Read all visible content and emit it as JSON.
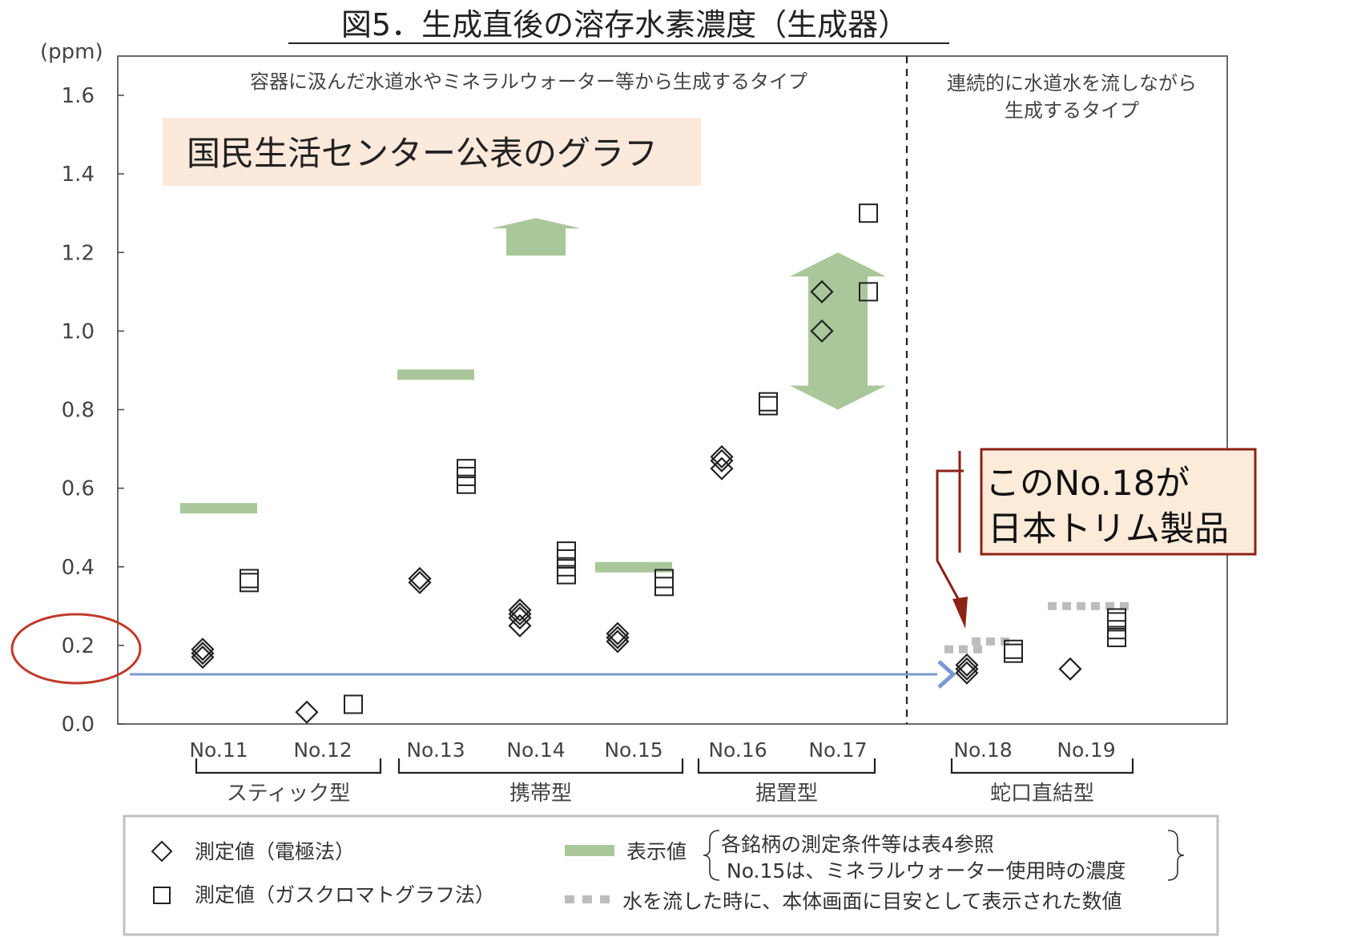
{
  "chart_data": {
    "type": "scatter",
    "title": "図5．生成直後の溶存水素濃度（生成器）",
    "y_unit": "(ppm)",
    "ylim": [
      0,
      1.6
    ],
    "y_ticks": [
      "0.0",
      "0.2",
      "0.4",
      "0.6",
      "0.8",
      "1.0",
      "1.2",
      "1.4",
      "1.6"
    ],
    "categories": [
      "No.11",
      "No.12",
      "No.13",
      "No.14",
      "No.15",
      "No.16",
      "No.17",
      "No.18",
      "No.19"
    ],
    "groups": [
      "スティック型",
      "携帯型",
      "据置型",
      "蛇口直結型"
    ],
    "region_labels": {
      "left": "容器に汲んだ水道水やミネラルウォーター等から生成するタイプ",
      "right_line1": "連続的に水道水を流しながら",
      "right_line2": "生成するタイプ"
    },
    "series": [
      {
        "name": "測定値（電極法）",
        "marker": "diamond",
        "points": [
          {
            "category": "No.11",
            "values": [
              0.17,
              0.18,
              0.19
            ]
          },
          {
            "category": "No.12",
            "values": [
              0.03
            ]
          },
          {
            "category": "No.13",
            "values": [
              0.36,
              0.37
            ]
          },
          {
            "category": "No.14",
            "values": [
              0.25,
              0.27,
              0.28,
              0.29
            ]
          },
          {
            "category": "No.15",
            "values": [
              0.21,
              0.22,
              0.23
            ]
          },
          {
            "category": "No.16",
            "values": [
              0.65,
              0.67,
              0.68
            ]
          },
          {
            "category": "No.17",
            "values": [
              1.0,
              1.1
            ]
          },
          {
            "category": "No.18",
            "values": [
              0.13,
              0.14,
              0.15
            ]
          },
          {
            "category": "No.19",
            "values": [
              0.14
            ]
          }
        ]
      },
      {
        "name": "測定値（ガスクロマトグラフ法）",
        "marker": "square",
        "points": [
          {
            "category": "No.11",
            "values": [
              0.36,
              0.37
            ]
          },
          {
            "category": "No.12",
            "values": [
              0.05
            ]
          },
          {
            "category": "No.13",
            "values": [
              0.61,
              0.63,
              0.65
            ]
          },
          {
            "category": "No.14",
            "values": [
              0.38,
              0.4,
              0.42,
              0.44
            ]
          },
          {
            "category": "No.15",
            "values": [
              0.35,
              0.37
            ]
          },
          {
            "category": "No.16",
            "values": [
              0.81,
              0.82
            ]
          },
          {
            "category": "No.17",
            "values": [
              1.1,
              1.3
            ]
          },
          {
            "category": "No.18",
            "values": [
              0.18,
              0.19
            ]
          },
          {
            "category": "No.19",
            "values": [
              0.22,
              0.24,
              0.26,
              0.27
            ]
          }
        ]
      },
      {
        "name": "表示値",
        "marker": "bar",
        "items": [
          {
            "categories": [
              "No.11"
            ],
            "value": 0.55
          },
          {
            "categories": [
              "No.13"
            ],
            "value": 0.89
          },
          {
            "categories": [
              "No.14"
            ],
            "value": 1.2,
            "direction": "up"
          },
          {
            "categories": [
              "No.15"
            ],
            "value": 0.4
          },
          {
            "categories": [
              "No.17"
            ],
            "value_range": [
              0.8,
              1.2
            ]
          }
        ]
      },
      {
        "name": "水を流した時に、本体画面に目安として表示された数値",
        "marker": "dotted",
        "items": [
          {
            "category": "No.18",
            "values": [
              0.19,
              0.21
            ]
          },
          {
            "category": "No.19",
            "values": [
              0.3
            ]
          }
        ]
      }
    ],
    "legend": {
      "diamond": "測定値（電極法）",
      "square": "測定値（ガスクロマトグラフ法）",
      "bar": "表示値",
      "bar_note_1": "各銘柄の測定条件等は表4参照",
      "bar_note_2": "No.15は、ミネラルウォーター使用時の濃度",
      "dotted": "水を流した時に、本体画面に目安として表示された数値"
    },
    "annotations": {
      "label_box": "国民生活センター公表のグラフ",
      "callout_line1": "このNo.18が",
      "callout_line2": "日本トリム製品",
      "highlighted_tick": "0.2"
    },
    "colors": {
      "display_value": "#a9c79a",
      "label_box_bg": "#fbe9dc",
      "callout_bg": "#fcebd9",
      "callout_border": "#8b2216",
      "highlight_circle": "#c0392b",
      "arrow_blue": "#7b98cf",
      "dotted_gray": "#bdbdbd"
    }
  }
}
